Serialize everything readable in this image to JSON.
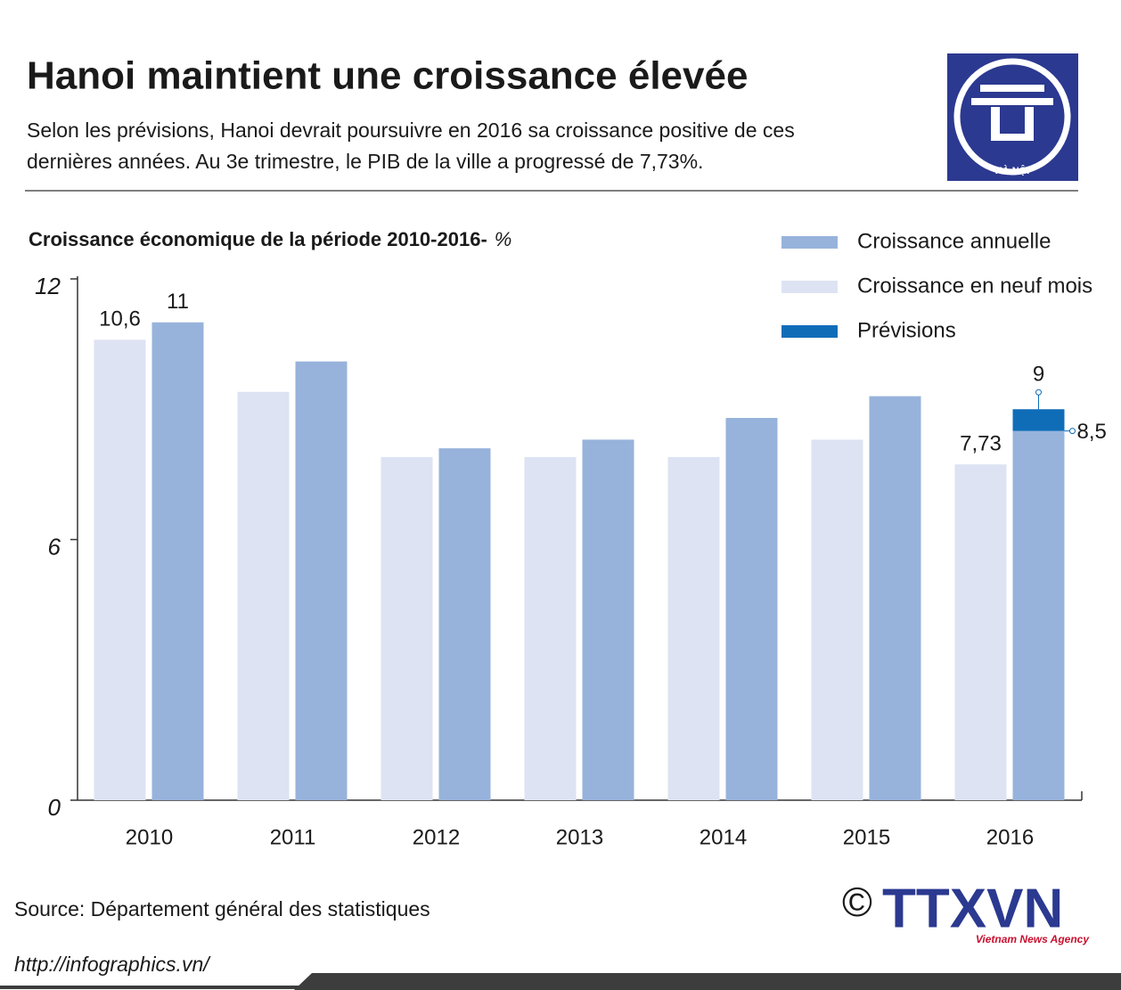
{
  "header": {
    "title": "Hanoi maintient une croissance élevée",
    "subtitle_lines": [
      "Selon les prévisions, Hanoi devrait poursuivre en 2016 sa croissance positive de ces",
      "dernières années. Au 3e trimestre, le PIB de la ville a progressé de 7,73%."
    ],
    "logo_text": "HÀ NỘI"
  },
  "chart_data": {
    "type": "bar",
    "title": "Croissance économique de la période 2010-2016-",
    "unit": "%",
    "categories": [
      "2010",
      "2011",
      "2012",
      "2013",
      "2014",
      "2015",
      "2016"
    ],
    "series": [
      {
        "name": "Croissance annuelle",
        "color": "#97b3db",
        "values": [
          11,
          10.1,
          8.1,
          8.3,
          8.8,
          9.3,
          8.5
        ],
        "value_labels": [
          "11",
          null,
          null,
          null,
          null,
          null,
          "8,5"
        ]
      },
      {
        "name": "Croissance en neuf mois",
        "color": "#dde3f2",
        "values": [
          10.6,
          9.4,
          7.9,
          7.9,
          7.9,
          8.3,
          7.73
        ],
        "value_labels": [
          "10,6",
          null,
          null,
          null,
          null,
          null,
          "7,73"
        ]
      },
      {
        "name": "Prévisions",
        "color": "#0f6db8",
        "values": [
          null,
          null,
          null,
          null,
          null,
          null,
          9
        ],
        "value_labels": [
          null,
          null,
          null,
          null,
          null,
          null,
          "9"
        ]
      }
    ],
    "ylim": [
      0,
      12
    ],
    "yticks": [
      0,
      6,
      12
    ],
    "grid": false,
    "legend": "top-right"
  },
  "footer": {
    "source": "Source:  Département général des statistiques",
    "url": "http://infographics.vn/",
    "agency": "TTXVN",
    "agency_sub": "Vietnam News Agency",
    "copyright": "©"
  }
}
